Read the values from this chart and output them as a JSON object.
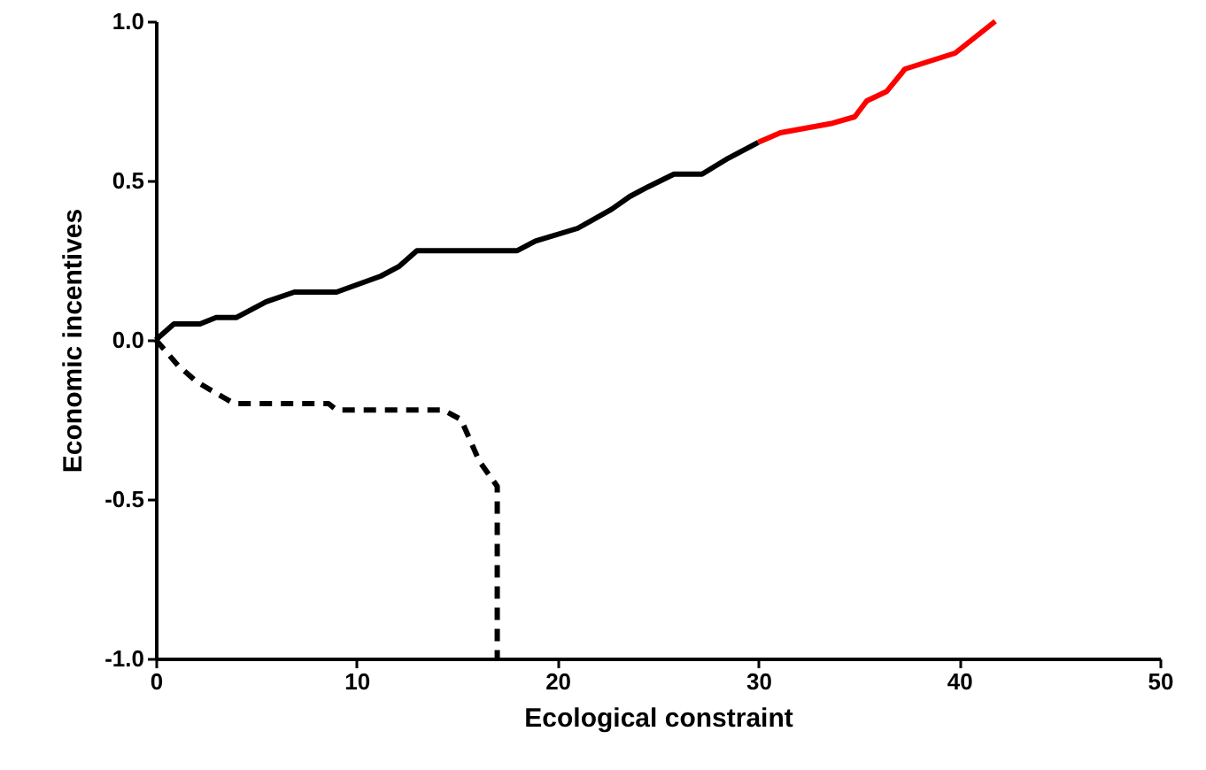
{
  "chart_data": {
    "type": "line",
    "xlabel": "Ecological constraint",
    "ylabel": "Economic incentives",
    "xlim": [
      0,
      50
    ],
    "xticks": [
      0,
      10,
      20,
      30,
      40,
      50
    ],
    "ylim": [
      -1,
      1
    ],
    "yticks": [
      {
        "value": -1,
        "label": "-1.0"
      },
      {
        "value": -0.5,
        "label": "-0.5"
      },
      {
        "value": 0,
        "label": "0.0"
      },
      {
        "value": 0.5,
        "label": "0.5"
      },
      {
        "value": 1,
        "label": "1.0"
      }
    ],
    "grid": false,
    "marker": "none",
    "series": [
      {
        "color": "#000000",
        "line_style": "solid",
        "x": [
          0,
          0.9,
          2.2,
          3,
          4,
          5.5,
          6.9,
          9,
          11.2,
          12.1,
          13,
          18,
          18.9,
          21,
          22.7,
          23.6,
          24.5,
          25.8,
          27.2,
          28.5,
          30
        ],
        "values": [
          0,
          0.05,
          0.05,
          0.07,
          0.07,
          0.12,
          0.15,
          0.15,
          0.2,
          0.23,
          0.28,
          0.28,
          0.31,
          0.35,
          0.41,
          0.45,
          0.48,
          0.52,
          0.52,
          0.57,
          0.62
        ]
      },
      {
        "color": "#ff0000",
        "line_style": "solid",
        "x": [
          30,
          31.1,
          33.7,
          34.8,
          35.4,
          36.4,
          37.3,
          39.8,
          41.8
        ],
        "values": [
          0.62,
          0.65,
          0.68,
          0.7,
          0.75,
          0.78,
          0.85,
          0.9,
          1.0
        ]
      },
      {
        "color": "#000000",
        "line_style": "dashed",
        "x": [
          0,
          1.1,
          2,
          2.8,
          3.9,
          8.6,
          9,
          14.3,
          15.2,
          16.1,
          17,
          17
        ],
        "values": [
          0,
          -0.08,
          -0.13,
          -0.16,
          -0.2,
          -0.2,
          -0.22,
          -0.22,
          -0.25,
          -0.38,
          -0.46,
          -1.0
        ]
      }
    ]
  }
}
